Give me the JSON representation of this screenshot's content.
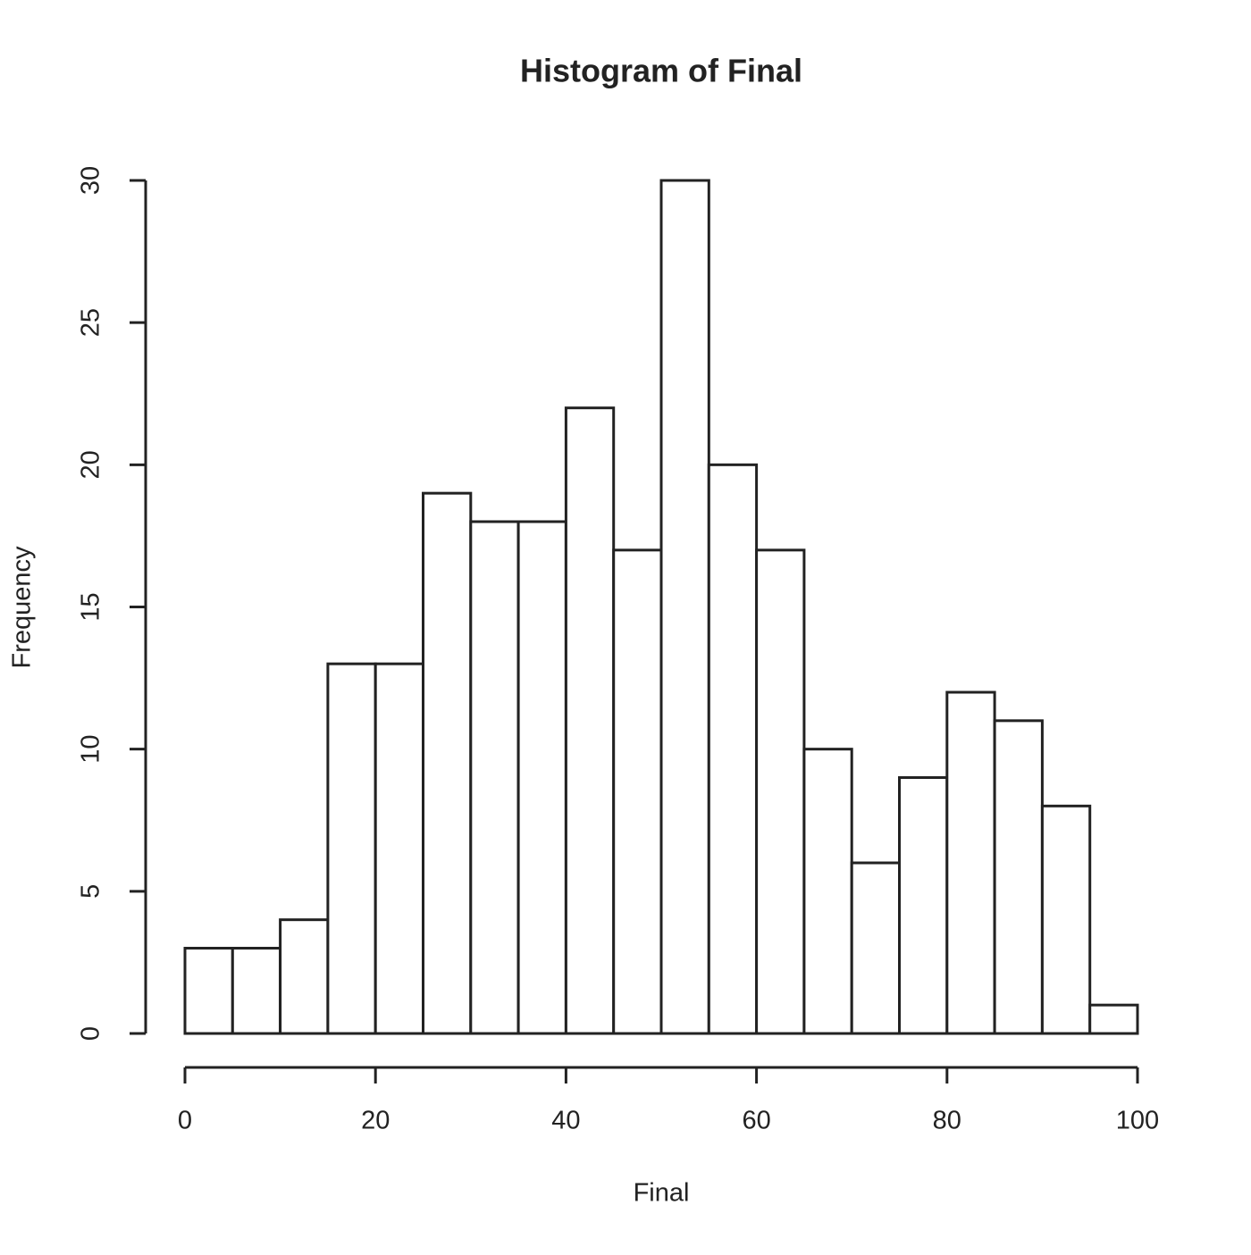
{
  "chart_data": {
    "type": "histogram",
    "title": "Histogram of Final",
    "x_label": "Final",
    "y_label": "Frequency",
    "bins": [
      0,
      5,
      10,
      15,
      20,
      25,
      30,
      35,
      40,
      45,
      50,
      55,
      60,
      65,
      70,
      75,
      80,
      85,
      90,
      95,
      100
    ],
    "counts": [
      3,
      3,
      4,
      13,
      13,
      19,
      18,
      18,
      22,
      17,
      30,
      20,
      17,
      10,
      6,
      9,
      12,
      11,
      8,
      1
    ],
    "color": "#ffffff",
    "edgecolor": "#222222",
    "xlim": [
      0,
      100
    ],
    "ylim": [
      0,
      30
    ],
    "xticks": [
      0,
      20,
      40,
      60,
      80,
      100
    ],
    "yticks": [
      0,
      5,
      10,
      15,
      20,
      25,
      30
    ],
    "grid": false
  }
}
